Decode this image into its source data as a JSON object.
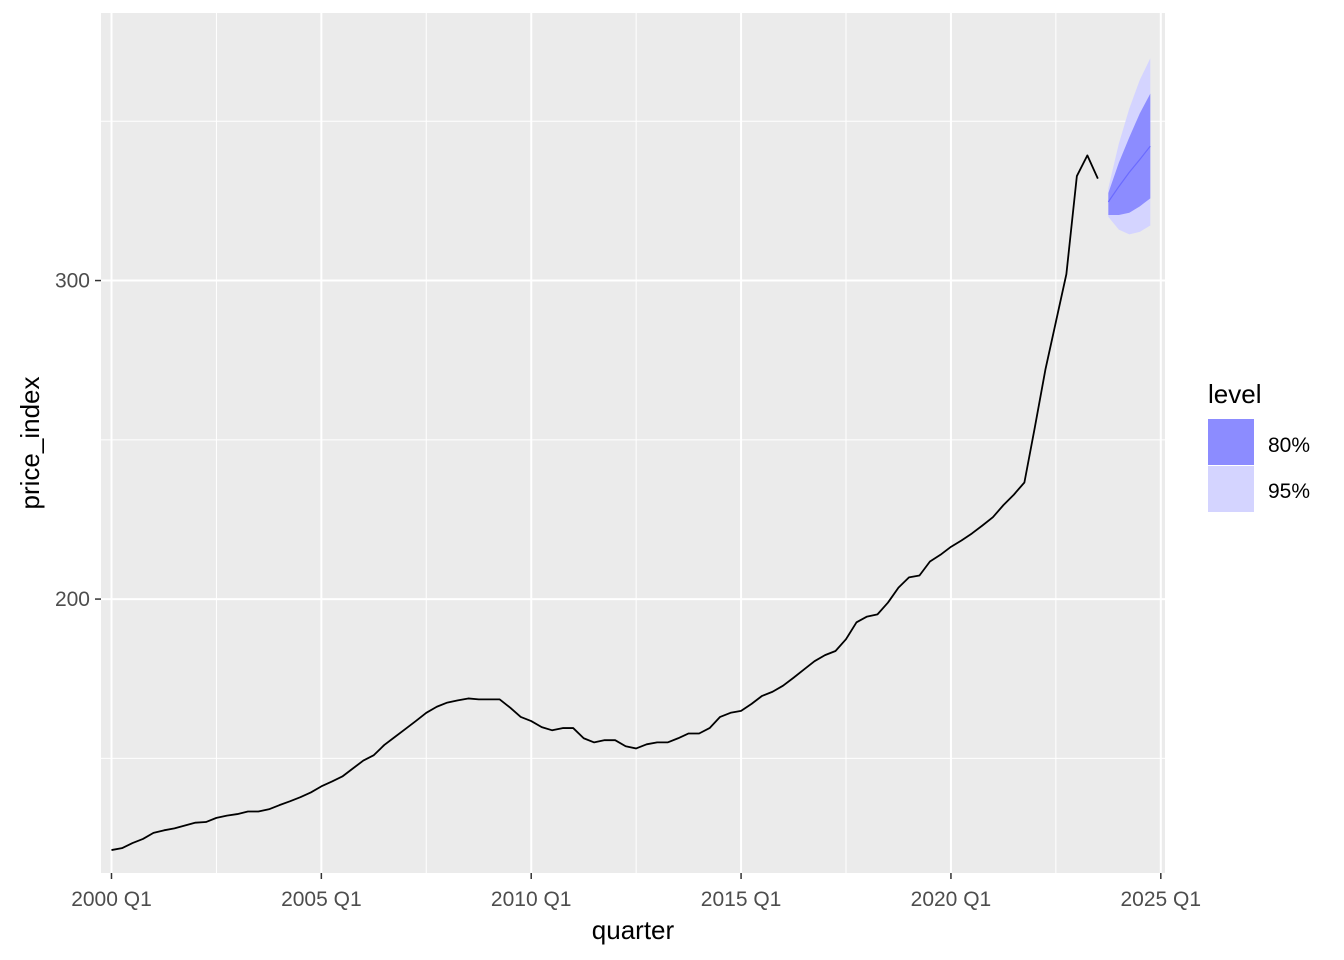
{
  "chart_data": {
    "type": "line",
    "title": "",
    "xlabel": "quarter",
    "ylabel": "price_index",
    "x_ticks": [
      "2000 Q1",
      "2005 Q1",
      "2010 Q1",
      "2015 Q1",
      "2020 Q1",
      "2025 Q1"
    ],
    "y_ticks": [
      "200",
      "300"
    ],
    "y_tick_values": [
      200,
      300
    ],
    "xlim": [
      1999.75,
      2025.1
    ],
    "ylim": [
      114,
      384
    ],
    "grid": true,
    "legend": {
      "title": "level",
      "position": "right",
      "items": [
        {
          "label": "80%",
          "color": "#8c8cff"
        },
        {
          "label": "95%",
          "color": "#d4d4ff"
        }
      ]
    },
    "series": [
      {
        "kind": "observed",
        "color": "#000000",
        "points": [
          [
            2000.0,
            121.2
          ],
          [
            2000.25,
            121.8
          ],
          [
            2000.5,
            123.4
          ],
          [
            2000.75,
            124.7
          ],
          [
            2001.0,
            126.6
          ],
          [
            2001.25,
            127.4
          ],
          [
            2001.5,
            128.0
          ],
          [
            2001.75,
            128.9
          ],
          [
            2002.0,
            129.8
          ],
          [
            2002.25,
            130.0
          ],
          [
            2002.5,
            131.3
          ],
          [
            2002.75,
            132.0
          ],
          [
            2003.0,
            132.5
          ],
          [
            2003.25,
            133.3
          ],
          [
            2003.5,
            133.3
          ],
          [
            2003.75,
            134.0
          ],
          [
            2004.0,
            135.3
          ],
          [
            2004.25,
            136.5
          ],
          [
            2004.5,
            137.8
          ],
          [
            2004.75,
            139.3
          ],
          [
            2005.0,
            141.2
          ],
          [
            2005.25,
            142.7
          ],
          [
            2005.5,
            144.3
          ],
          [
            2005.75,
            146.8
          ],
          [
            2006.0,
            149.3
          ],
          [
            2006.25,
            151.0
          ],
          [
            2006.5,
            154.2
          ],
          [
            2006.75,
            156.7
          ],
          [
            2007.0,
            159.2
          ],
          [
            2007.25,
            161.7
          ],
          [
            2007.5,
            164.3
          ],
          [
            2007.75,
            166.2
          ],
          [
            2008.0,
            167.5
          ],
          [
            2008.25,
            168.2
          ],
          [
            2008.5,
            168.8
          ],
          [
            2008.75,
            168.5
          ],
          [
            2009.0,
            168.5
          ],
          [
            2009.25,
            168.5
          ],
          [
            2009.5,
            165.9
          ],
          [
            2009.75,
            163.0
          ],
          [
            2010.0,
            161.7
          ],
          [
            2010.25,
            159.8
          ],
          [
            2010.5,
            158.8
          ],
          [
            2010.75,
            159.5
          ],
          [
            2011.0,
            159.5
          ],
          [
            2011.25,
            156.3
          ],
          [
            2011.5,
            155.0
          ],
          [
            2011.75,
            155.7
          ],
          [
            2012.0,
            155.7
          ],
          [
            2012.25,
            153.8
          ],
          [
            2012.5,
            153.1
          ],
          [
            2012.75,
            154.4
          ],
          [
            2013.0,
            155.0
          ],
          [
            2013.25,
            155.0
          ],
          [
            2013.5,
            156.3
          ],
          [
            2013.75,
            157.8
          ],
          [
            2014.0,
            157.8
          ],
          [
            2014.25,
            159.5
          ],
          [
            2014.5,
            163.0
          ],
          [
            2014.75,
            164.3
          ],
          [
            2015.0,
            164.9
          ],
          [
            2015.25,
            167.1
          ],
          [
            2015.5,
            169.6
          ],
          [
            2015.75,
            170.9
          ],
          [
            2016.0,
            172.8
          ],
          [
            2016.25,
            175.3
          ],
          [
            2016.5,
            177.9
          ],
          [
            2016.75,
            180.5
          ],
          [
            2017.0,
            182.4
          ],
          [
            2017.25,
            183.7
          ],
          [
            2017.5,
            187.4
          ],
          [
            2017.75,
            192.7
          ],
          [
            2018.0,
            194.5
          ],
          [
            2018.25,
            195.2
          ],
          [
            2018.5,
            198.9
          ],
          [
            2018.75,
            203.6
          ],
          [
            2019.0,
            206.8
          ],
          [
            2019.25,
            207.4
          ],
          [
            2019.5,
            211.8
          ],
          [
            2019.75,
            213.9
          ],
          [
            2020.0,
            216.4
          ],
          [
            2020.25,
            218.4
          ],
          [
            2020.5,
            220.6
          ],
          [
            2020.75,
            223.1
          ],
          [
            2021.0,
            225.7
          ],
          [
            2021.25,
            229.5
          ],
          [
            2021.5,
            232.8
          ],
          [
            2021.75,
            236.6
          ],
          [
            2022.0,
            254.0
          ],
          [
            2022.25,
            272.0
          ],
          [
            2022.5,
            287.0
          ],
          [
            2022.75,
            302.0
          ],
          [
            2023.0,
            332.8
          ],
          [
            2023.25,
            339.3
          ],
          [
            2023.5,
            332.0
          ]
        ]
      },
      {
        "kind": "forecast",
        "color": "#6b6bff",
        "points": [
          [
            2023.75,
            324.7
          ],
          [
            2024.0,
            329.5
          ],
          [
            2024.25,
            334.0
          ],
          [
            2024.5,
            338.0
          ],
          [
            2024.75,
            342.2
          ]
        ]
      }
    ],
    "bands": [
      {
        "level": "95%",
        "color": "#d4d4ff",
        "x": [
          2023.75,
          2024.0,
          2024.25,
          2024.5,
          2024.75
        ],
        "lower": [
          320.0,
          316.0,
          314.5,
          315.3,
          317.3
        ],
        "upper": [
          329.0,
          343.0,
          354.0,
          363.0,
          369.8
        ]
      },
      {
        "level": "80%",
        "color": "#8c8cff",
        "x": [
          2023.75,
          2024.0,
          2024.25,
          2024.5,
          2024.75
        ],
        "lower": [
          320.6,
          320.6,
          321.3,
          323.3,
          325.8
        ],
        "upper": [
          327.5,
          337.0,
          345.0,
          352.5,
          358.7
        ]
      }
    ]
  }
}
